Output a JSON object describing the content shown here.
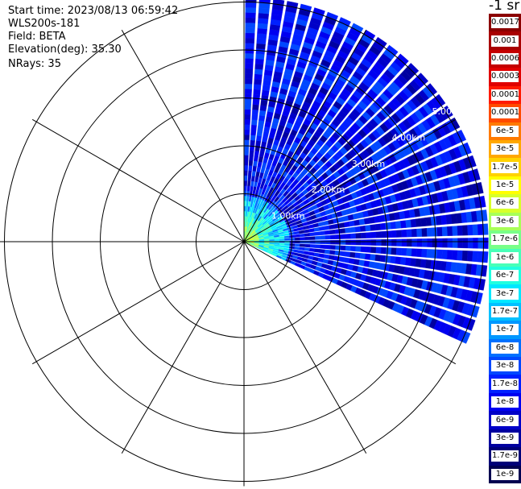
{
  "info": {
    "start_time": "Start time: 2023/08/13 06:59:42",
    "device": "WLS200s-181",
    "field": "Field: BETA",
    "elevation": "Elevation(deg): 35.30",
    "nrays": "NRays: 35"
  },
  "colorbar": {
    "unit_label": "-1 sr",
    "labels": [
      "0.0017",
      "0.001",
      "0.0006",
      "0.0003",
      "0.00017",
      "0.0001",
      "6e-5",
      "3e-5",
      "1.7e-5",
      "1e-5",
      "6e-6",
      "3e-6",
      "1.7e-6",
      "1e-6",
      "6e-7",
      "3e-7",
      "1.7e-7",
      "1e-7",
      "6e-8",
      "3e-8",
      "1.7e-8",
      "1e-8",
      "6e-9",
      "3e-9",
      "1.7e-9",
      "1e-9"
    ],
    "colors": [
      "#8b0000",
      "#a80000",
      "#c40000",
      "#e00000",
      "#ff1a00",
      "#ff4a00",
      "#ff7a00",
      "#ffa800",
      "#ffd200",
      "#ffff00",
      "#d8ff2a",
      "#a8ff58",
      "#78ff88",
      "#48ffb8",
      "#20ffe0",
      "#00e8ff",
      "#00c0ff",
      "#0098ff",
      "#0070ff",
      "#0048ff",
      "#0020ff",
      "#0000f0",
      "#0000c8",
      "#0000a0",
      "#000078",
      "#000050"
    ]
  },
  "chart_data": {
    "type": "ppi-polar",
    "field": "BETA",
    "elevation_deg": 35.3,
    "n_rays": 35,
    "azimuth_range_deg": [
      0,
      115
    ],
    "max_range_km": 5.1,
    "range_rings_km": [
      1,
      2,
      3,
      4,
      5
    ],
    "ring_labels": [
      "1.00km",
      "2.00km",
      "3.00km",
      "4.00km",
      "5.00km"
    ],
    "ring_label_azimuth_deg": 57,
    "spokes_deg": [
      0,
      30,
      60,
      90,
      120,
      150,
      180,
      210,
      240,
      270,
      300,
      330
    ],
    "near_range_values": [
      3e-06,
      1.7e-06,
      6e-07,
      3e-07,
      1.7e-07,
      1e-07
    ],
    "far_range_value": 1e-08
  }
}
